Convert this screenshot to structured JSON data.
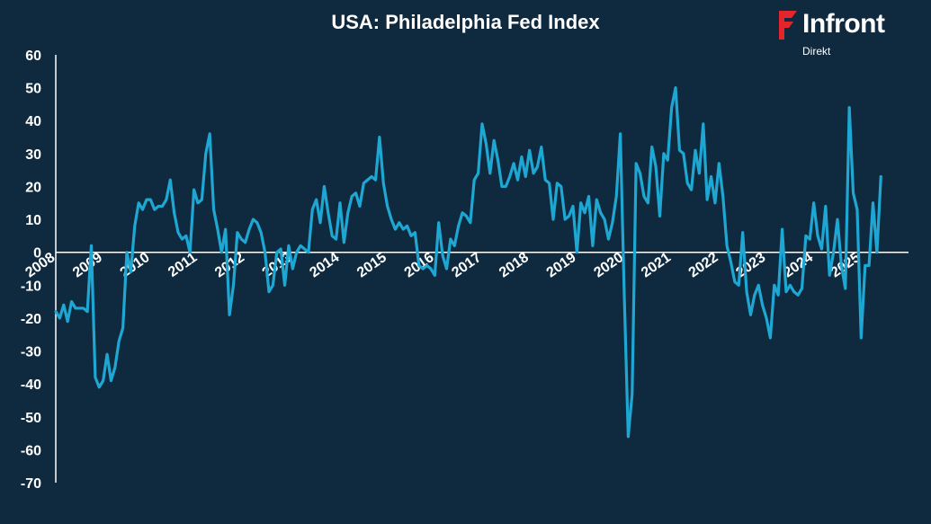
{
  "colors": {
    "background": "#0f2a3f",
    "line": "#1ea7d3",
    "axis": "#ffffff",
    "text": "#ffffff",
    "brand_red": "#e3262e"
  },
  "logo": {
    "name": "Infront",
    "sub": "Direkt",
    "icon": "infront-logo-mark"
  },
  "chart_data": {
    "type": "line",
    "title": "USA: Philadelphia Fed Index",
    "xlabel": "",
    "ylabel": "",
    "ylim": [
      -70,
      60
    ],
    "yticks": [
      60,
      50,
      40,
      30,
      20,
      10,
      0,
      -10,
      -20,
      -30,
      -40,
      -50,
      -60,
      -70
    ],
    "xticks": [
      "2008",
      "2009",
      "2010",
      "2011",
      "2012",
      "2013",
      "2014",
      "2015",
      "2016",
      "2017",
      "2018",
      "2019",
      "2020",
      "2021",
      "2022",
      "2023",
      "2024",
      "2025"
    ],
    "x_start": "2008-01",
    "x_end": "2025-12",
    "grid": false,
    "legend": "none",
    "series": [
      {
        "values": [
          -18,
          -20,
          -16,
          -21,
          -15,
          -17,
          -17,
          -17,
          -18,
          2,
          -38,
          -41,
          -39,
          -31,
          -39,
          -35,
          -27,
          -23,
          0,
          -6,
          8,
          15,
          13,
          16,
          16,
          13,
          14,
          14,
          16,
          22,
          12,
          6,
          4,
          5,
          0,
          19,
          15,
          16,
          30,
          36,
          13,
          7,
          0,
          7,
          -19,
          -10,
          6,
          4,
          3,
          7,
          10,
          9,
          6,
          0,
          -12,
          -10,
          0,
          1,
          -10,
          2,
          -5,
          0,
          2,
          1,
          0,
          13,
          16,
          9,
          20,
          12,
          5,
          4,
          15,
          3,
          12,
          17,
          18,
          14,
          21,
          22,
          23,
          22,
          35,
          21,
          14,
          10,
          7,
          9,
          7,
          8,
          5,
          6,
          -4,
          -5,
          -4,
          -5,
          -7,
          9,
          -1,
          -5,
          4,
          2,
          8,
          12,
          11,
          9,
          22,
          24,
          39,
          33,
          24,
          34,
          28,
          20,
          20,
          23,
          27,
          22,
          29,
          23,
          31,
          24,
          26,
          32,
          22,
          21,
          10,
          21,
          20,
          10,
          11,
          14,
          0,
          15,
          12,
          17,
          2,
          16,
          12,
          10,
          4,
          9,
          17,
          36,
          -13,
          -56,
          -43,
          27,
          24,
          17,
          15,
          32,
          26,
          11,
          30,
          28,
          44,
          50,
          31,
          30,
          21,
          19,
          31,
          24,
          39,
          16,
          23,
          15,
          27,
          17,
          2,
          -3,
          -9,
          -10,
          6,
          -12,
          -19,
          -13,
          -10,
          -16,
          -20,
          -26,
          -10,
          -13,
          7,
          -12,
          -10,
          -12,
          -13,
          -11,
          5,
          4,
          15,
          5,
          1,
          14,
          -7,
          0,
          10,
          -4,
          -11,
          44,
          18,
          13,
          -26,
          -4,
          -4,
          15,
          0,
          23
        ]
      }
    ]
  }
}
